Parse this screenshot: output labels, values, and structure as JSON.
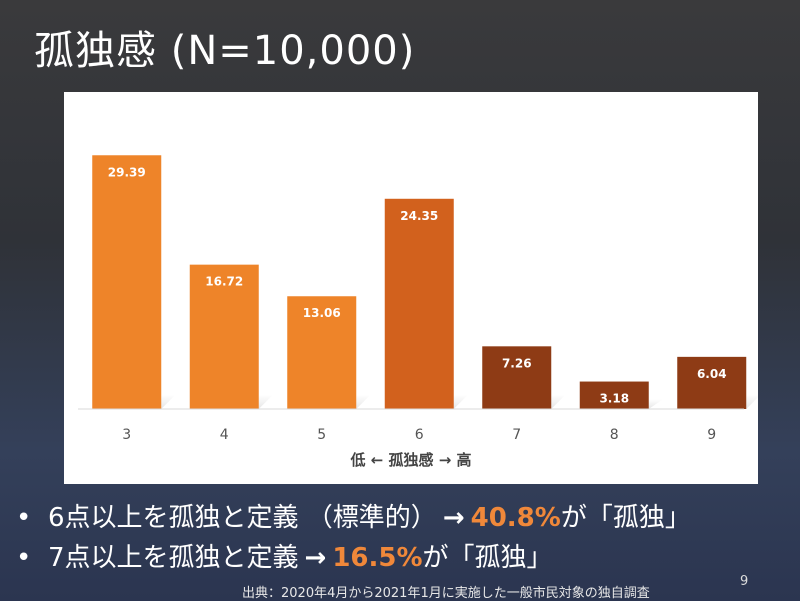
{
  "slide": {
    "title": "孤独感 (N=10,000)",
    "page_number": "9",
    "footer": "出典：2020年4月から2021年1月に実施した一般市民対象の独自調査"
  },
  "chart_data": {
    "type": "bar",
    "categories": [
      "3",
      "4",
      "5",
      "6",
      "7",
      "8",
      "9"
    ],
    "values": [
      29.39,
      16.72,
      13.06,
      24.35,
      7.26,
      3.18,
      6.04
    ],
    "value_labels": [
      "29.39",
      "16.72",
      "13.06",
      "24.35",
      "7.26",
      "3.18",
      "6.04"
    ],
    "bar_colors": [
      "#ee8429",
      "#ee8429",
      "#ee8429",
      "#d2611d",
      "#8e3b15",
      "#8e3b15",
      "#8e3b15"
    ],
    "xlabel": "低 ← 孤独感 → 高",
    "ylabel": "",
    "ylim": [
      0,
      30
    ],
    "grid": false,
    "legend": "none"
  },
  "bullets": [
    {
      "marker": "•",
      "text": "6点以上を孤独と定義 （標準的）",
      "arrow": "→",
      "highlight": "40.8%",
      "suffix": "が「孤独」"
    },
    {
      "marker": "•",
      "text": "7点以上を孤独と定義",
      "arrow": "→",
      "highlight": "16.5%",
      "suffix": "が「孤独」"
    }
  ],
  "colors": {
    "highlight": "#f0883a",
    "bar_light": "#ee8429",
    "bar_mid": "#d2611d",
    "bar_dark": "#8e3b15"
  }
}
